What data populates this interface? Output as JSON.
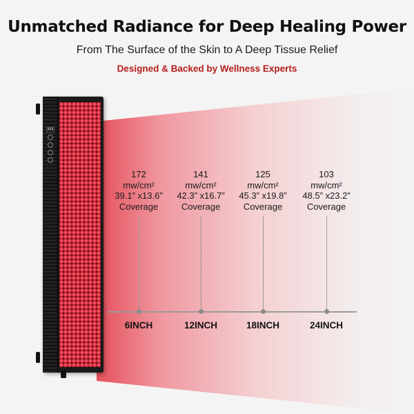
{
  "headline": "Unmatched Radiance for Deep Healing Power",
  "subheadline": "From The Surface of the Skin to A Deep Tissue Relief",
  "tagline": "Designed & Backed by Wellness Experts",
  "colors": {
    "tagline": "#b51d1d",
    "beam": "#e44654",
    "led": "#f24a5c",
    "panel": "#1a1a1a"
  },
  "device": {
    "display": "888"
  },
  "measurements": [
    {
      "irradiance": "172",
      "unit": "mw/cm²",
      "size": "39.1” x13.6”",
      "coverage_label": "Coverage",
      "distance": "6INCH"
    },
    {
      "irradiance": "141",
      "unit": "mw/cm²",
      "size": "42.3” x16.7”",
      "coverage_label": "Coverage",
      "distance": "12INCH"
    },
    {
      "irradiance": "125",
      "unit": "mw/cm²",
      "size": "45.3” x19.8”",
      "coverage_label": "Coverage",
      "distance": "18INCH"
    },
    {
      "irradiance": "103",
      "unit": "mw/cm²",
      "size": "48.5” x23.2”",
      "coverage_label": "Coverage",
      "distance": "24INCH"
    }
  ]
}
